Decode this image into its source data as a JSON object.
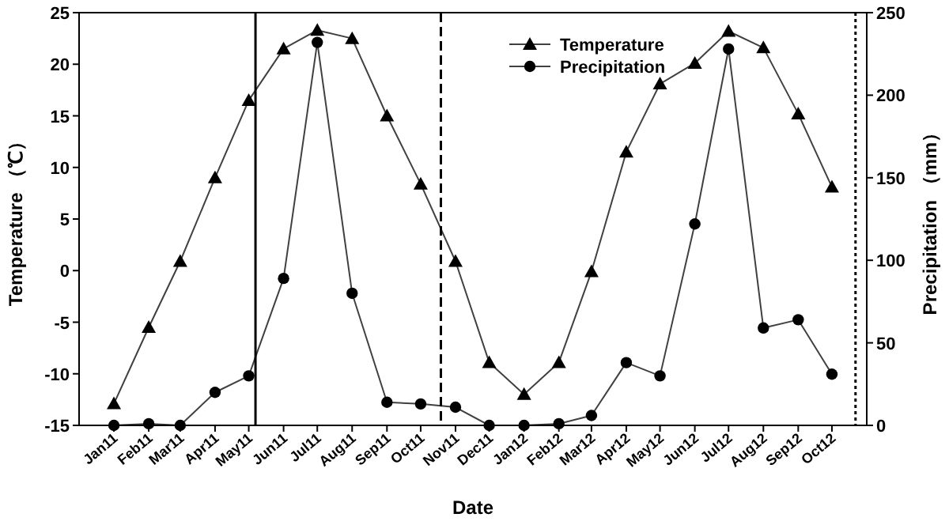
{
  "chart_data": {
    "type": "line",
    "xlabel": "Date",
    "ylabel": "Temperature （℃）",
    "y2label": "Precipitation （mm）",
    "x": [
      "2011-01",
      "2011-02",
      "2011-03",
      "2011-04",
      "2011-05",
      "2011-06",
      "2011-07",
      "2011-08",
      "2011-09",
      "2011-10",
      "2011-11",
      "2011-12",
      "2012-01",
      "2012-02",
      "2012-03",
      "2012-04",
      "2012-05",
      "2012-06",
      "2012-07",
      "2012-08",
      "2012-09",
      "2012-10"
    ],
    "xlim": [
      "2010-12",
      "2012-11"
    ],
    "xticks": [
      {
        "value": "2011-01",
        "label": "Jan11"
      },
      {
        "value": "2011-02",
        "label": "Feb11"
      },
      {
        "value": "2011-03",
        "label": "Mar11"
      },
      {
        "value": "2011-04",
        "label": "Apr11"
      },
      {
        "value": "2011-05",
        "label": "May11"
      },
      {
        "value": "2011-06",
        "label": "Jun11"
      },
      {
        "value": "2011-07",
        "label": "Jul11"
      },
      {
        "value": "2011-08",
        "label": "Aug11"
      },
      {
        "value": "2011-09",
        "label": "Sep11"
      },
      {
        "value": "2011-10",
        "label": "Oct11"
      },
      {
        "value": "2011-11",
        "label": "Nov11"
      },
      {
        "value": "2011-12",
        "label": "Dec11"
      },
      {
        "value": "2012-01",
        "label": "Jan12"
      },
      {
        "value": "2012-02",
        "label": "Feb12"
      },
      {
        "value": "2012-03",
        "label": "Mar12"
      },
      {
        "value": "2012-04",
        "label": "Apr12"
      },
      {
        "value": "2012-05",
        "label": "May12"
      },
      {
        "value": "2012-06",
        "label": "Jun12"
      },
      {
        "value": "2012-07",
        "label": "Jul12"
      },
      {
        "value": "2012-08",
        "label": "Aug12"
      },
      {
        "value": "2012-09",
        "label": "Sep12"
      },
      {
        "value": "2012-10",
        "label": "Oct12"
      }
    ],
    "series": [
      {
        "name": "Temperature",
        "color": "#000000",
        "marker": "triangle",
        "values": [
          -12.9,
          -5.5,
          0.9,
          9.0,
          16.5,
          21.5,
          23.3,
          22.5,
          15.0,
          8.4,
          0.9,
          -8.9,
          -12.0,
          -8.9,
          -0.1,
          11.5,
          18.1,
          20.1,
          23.2,
          21.6,
          15.2,
          8.1
        ]
      },
      {
        "name": "Precipitation",
        "color": "#000000",
        "marker": "circle",
        "axis": "y2",
        "values": [
          0,
          1,
          0,
          20,
          30,
          89,
          232,
          80,
          14,
          13,
          11,
          0,
          0,
          1,
          6,
          38,
          30,
          122,
          228,
          59,
          64,
          31
        ]
      }
    ],
    "ylim": [
      -15,
      25
    ],
    "yticks": [
      -15,
      -10,
      -5,
      0,
      5,
      10,
      15,
      20,
      25
    ],
    "y2lim": [
      0,
      250
    ],
    "y2ticks": [
      0,
      50,
      100,
      150,
      200,
      250
    ],
    "legend": "top",
    "ref_lines": [
      {
        "axis": "x",
        "value": "2011-05-07",
        "line_style": "solid",
        "color": "#000000"
      },
      {
        "axis": "x",
        "value": "2011-10-19",
        "line_style": "dashed",
        "color": "#000000"
      },
      {
        "axis": "x",
        "value": "2012-10-22",
        "line_style": "dotted",
        "color": "#000000"
      }
    ]
  }
}
